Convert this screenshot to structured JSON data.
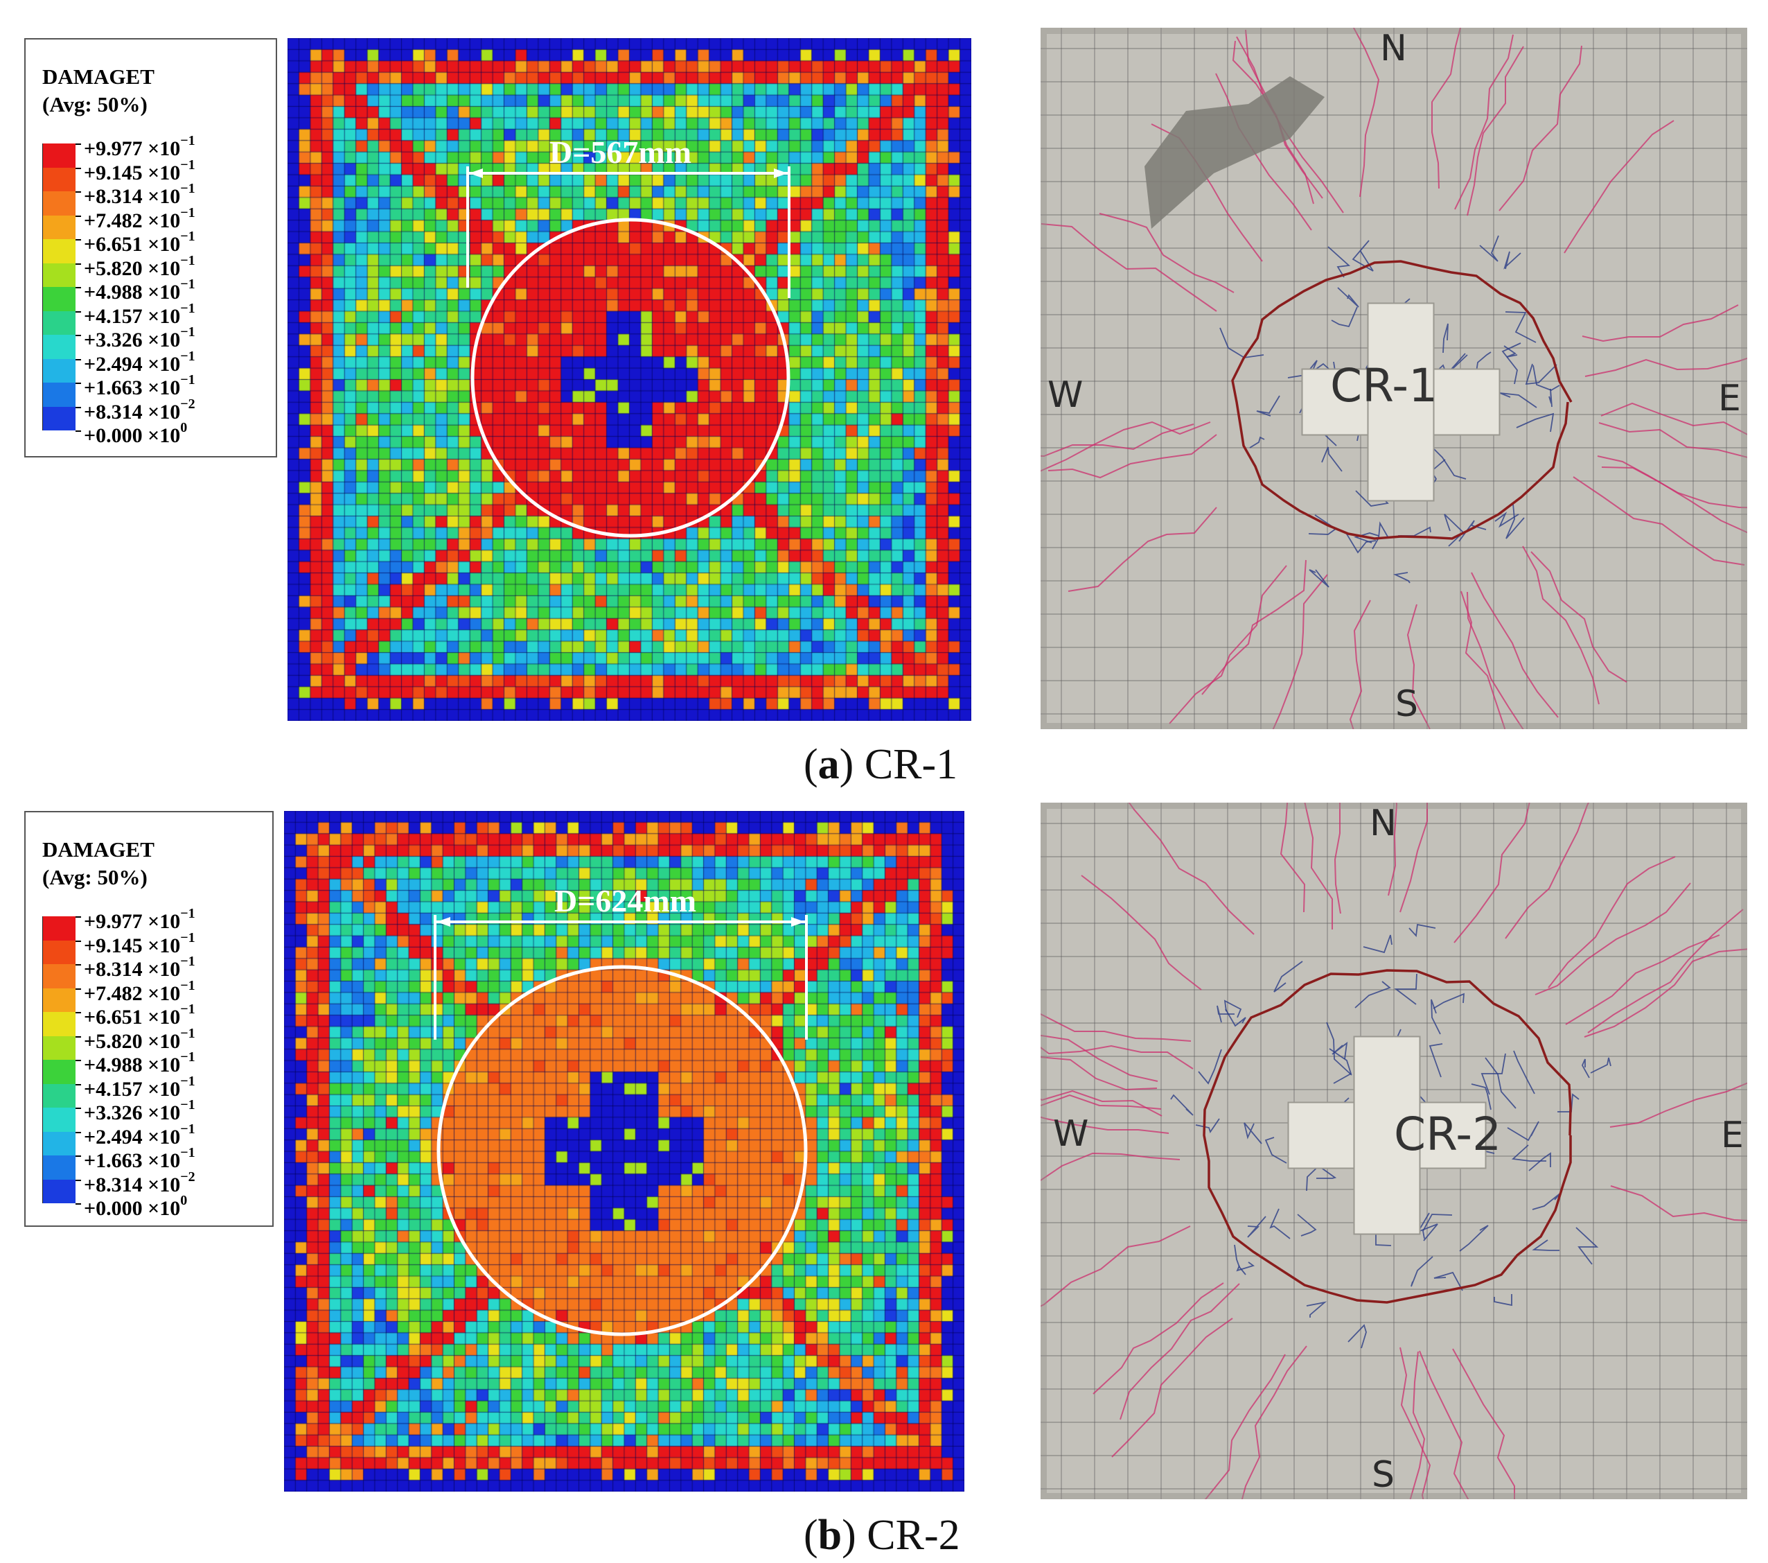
{
  "legend": {
    "title": "DAMAGET",
    "subtitle": "(Avg: 50%)",
    "levels": [
      {
        "mantissa": "+9.977",
        "exp": "−1"
      },
      {
        "mantissa": "+9.145",
        "exp": "−1"
      },
      {
        "mantissa": "+8.314",
        "exp": "−1"
      },
      {
        "mantissa": "+7.482",
        "exp": "−1"
      },
      {
        "mantissa": "+6.651",
        "exp": "−1"
      },
      {
        "mantissa": "+5.820",
        "exp": "−1"
      },
      {
        "mantissa": "+4.988",
        "exp": "−1"
      },
      {
        "mantissa": "+4.157",
        "exp": "−1"
      },
      {
        "mantissa": "+3.326",
        "exp": "−1"
      },
      {
        "mantissa": "+2.494",
        "exp": "−1"
      },
      {
        "mantissa": "+1.663",
        "exp": "−1"
      },
      {
        "mantissa": "+8.314",
        "exp": "−2"
      },
      {
        "mantissa": "+0.000",
        "exp": "0"
      }
    ],
    "colors": [
      "#e8161a",
      "#f04a14",
      "#f5761c",
      "#f5a41a",
      "#e8e01a",
      "#a6e01e",
      "#3cd23a",
      "#2ad28a",
      "#28d8cc",
      "#22b4e6",
      "#1a78e6",
      "#1a3ce0",
      "#1414cc"
    ]
  },
  "panels": [
    {
      "id": "a",
      "caption_letter": "a",
      "caption_text": "CR-1",
      "diameter_label": "D=567mm",
      "specimen_label": "CR-1",
      "compass": {
        "n": "N",
        "s": "S",
        "e": "E",
        "w": "W"
      }
    },
    {
      "id": "b",
      "caption_letter": "b",
      "caption_text": "CR-2",
      "diameter_label": "D=624mm",
      "specimen_label": "CR-2",
      "compass": {
        "n": "N",
        "s": "S",
        "e": "E",
        "w": "W"
      }
    }
  ]
}
